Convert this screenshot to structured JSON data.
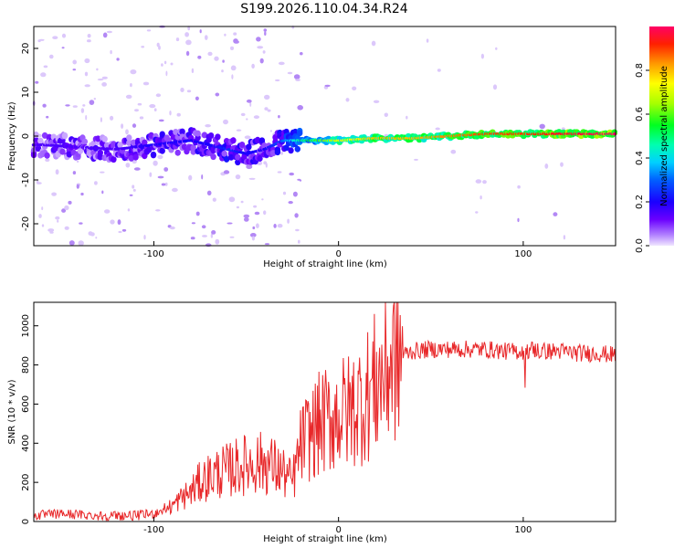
{
  "title": "S199.2026.110.04.34.R24",
  "chart_data": [
    {
      "type": "heatmap",
      "title": "S199.2026.110.04.34.R24",
      "xlabel": "Height of straight line (km)",
      "ylabel": "Frequency (Hz)",
      "xlim": [
        -165,
        150
      ],
      "ylim": [
        -25,
        25
      ],
      "x_ticks": [
        "-100",
        "0",
        "100"
      ],
      "x_tick_values": [
        -100,
        0,
        100
      ],
      "y_ticks": [
        "-20",
        "-10",
        "0",
        "10",
        "20"
      ],
      "y_tick_values": [
        -20,
        -10,
        0,
        10,
        20
      ],
      "colorbar": {
        "label": "Normalized spectral amplitude",
        "range": [
          0,
          1
        ],
        "ticks": [
          "0.0",
          "0.2",
          "0.4",
          "0.6",
          "0.8"
        ],
        "tick_values": [
          0.0,
          0.2,
          0.4,
          0.6,
          0.8
        ],
        "colormap": "rainbow"
      },
      "ridge": {
        "x": [
          -160,
          -140,
          -120,
          -100,
          -80,
          -70,
          -60,
          -50,
          -40,
          -30,
          -20,
          -10,
          0,
          20,
          40,
          60,
          80,
          100,
          120,
          150
        ],
        "frequency": [
          -2,
          -2.5,
          -3,
          -2,
          -1,
          -2,
          -3,
          -4,
          -3,
          -1,
          -1,
          -1,
          -1,
          -0.5,
          -0.5,
          0,
          0.5,
          0.5,
          0.5,
          0.5
        ],
        "amplitude": [
          0.15,
          0.15,
          0.15,
          0.2,
          0.2,
          0.2,
          0.25,
          0.2,
          0.2,
          0.3,
          0.5,
          0.6,
          0.7,
          0.8,
          0.8,
          0.85,
          0.9,
          0.9,
          0.95,
          1.0
        ]
      }
    },
    {
      "type": "line",
      "xlabel": "Height of straight line (km)",
      "ylabel": "SNR (10 * v/v)",
      "xlim": [
        -165,
        150
      ],
      "ylim": [
        0,
        1120
      ],
      "x_ticks": [
        "-100",
        "0",
        "100"
      ],
      "x_tick_values": [
        -100,
        0,
        100
      ],
      "y_ticks": [
        "0",
        "200",
        "400",
        "600",
        "800",
        "1000"
      ],
      "y_tick_values": [
        0,
        200,
        400,
        600,
        800,
        1000
      ],
      "series": [
        {
          "name": "SNR",
          "color": "#e8282a",
          "x": [
            -165,
            -150,
            -130,
            -110,
            -100,
            -90,
            -85,
            -80,
            -75,
            -70,
            -65,
            -60,
            -55,
            -50,
            -45,
            -40,
            -35,
            -30,
            -25,
            -20,
            -15,
            -10,
            -5,
            0,
            5,
            10,
            15,
            20,
            25,
            30,
            40,
            50,
            60,
            70,
            80,
            90,
            100,
            105,
            110,
            120,
            130,
            140,
            150
          ],
          "y": [
            30,
            40,
            30,
            30,
            40,
            80,
            120,
            150,
            200,
            230,
            250,
            260,
            280,
            290,
            300,
            300,
            280,
            250,
            200,
            400,
            450,
            500,
            520,
            550,
            560,
            600,
            640,
            700,
            760,
            840,
            870,
            880,
            880,
            880,
            880,
            870,
            870,
            880,
            870,
            870,
            860,
            860,
            850
          ]
        }
      ]
    }
  ],
  "colors": {
    "accent": "#e8282a",
    "frame": "#000000"
  }
}
